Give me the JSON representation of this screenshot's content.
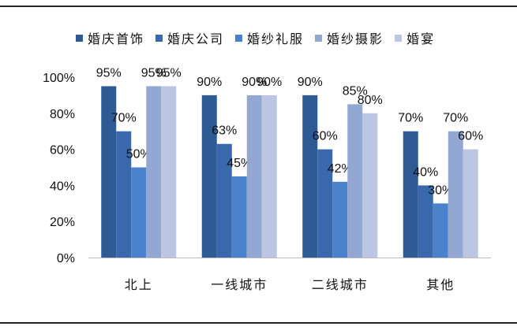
{
  "chart_data": {
    "type": "bar",
    "categories": [
      "北上",
      "一线城市",
      "二线城市",
      "其他"
    ],
    "series": [
      {
        "name": "婚庆首饰",
        "color": "#2f5b95",
        "values": [
          95,
          90,
          90,
          70
        ]
      },
      {
        "name": "婚庆公司",
        "color": "#3a69ab",
        "values": [
          70,
          63,
          60,
          40
        ]
      },
      {
        "name": "婚纱礼服",
        "color": "#4a82cc",
        "values": [
          50,
          45,
          42,
          30
        ]
      },
      {
        "name": "婚纱摄影",
        "color": "#92a8d2",
        "values": [
          95,
          90,
          85,
          70
        ]
      },
      {
        "name": "婚宴",
        "color": "#bcc6e2",
        "values": [
          95,
          90,
          80,
          60
        ]
      }
    ],
    "data_labels": [
      [
        "95%",
        "70%",
        "50%",
        "95%",
        "95%"
      ],
      [
        "90%",
        "63%",
        "45%",
        "90%",
        "90%"
      ],
      [
        "90%",
        "60%",
        "42%",
        "85%",
        "80%"
      ],
      [
        "70%",
        "40%",
        "30%",
        "70%",
        "60%"
      ]
    ],
    "y_ticks": [
      "0%",
      "20%",
      "40%",
      "60%",
      "80%",
      "100%"
    ],
    "ylim": [
      0,
      100
    ],
    "legend_position": "top",
    "grid": false
  }
}
